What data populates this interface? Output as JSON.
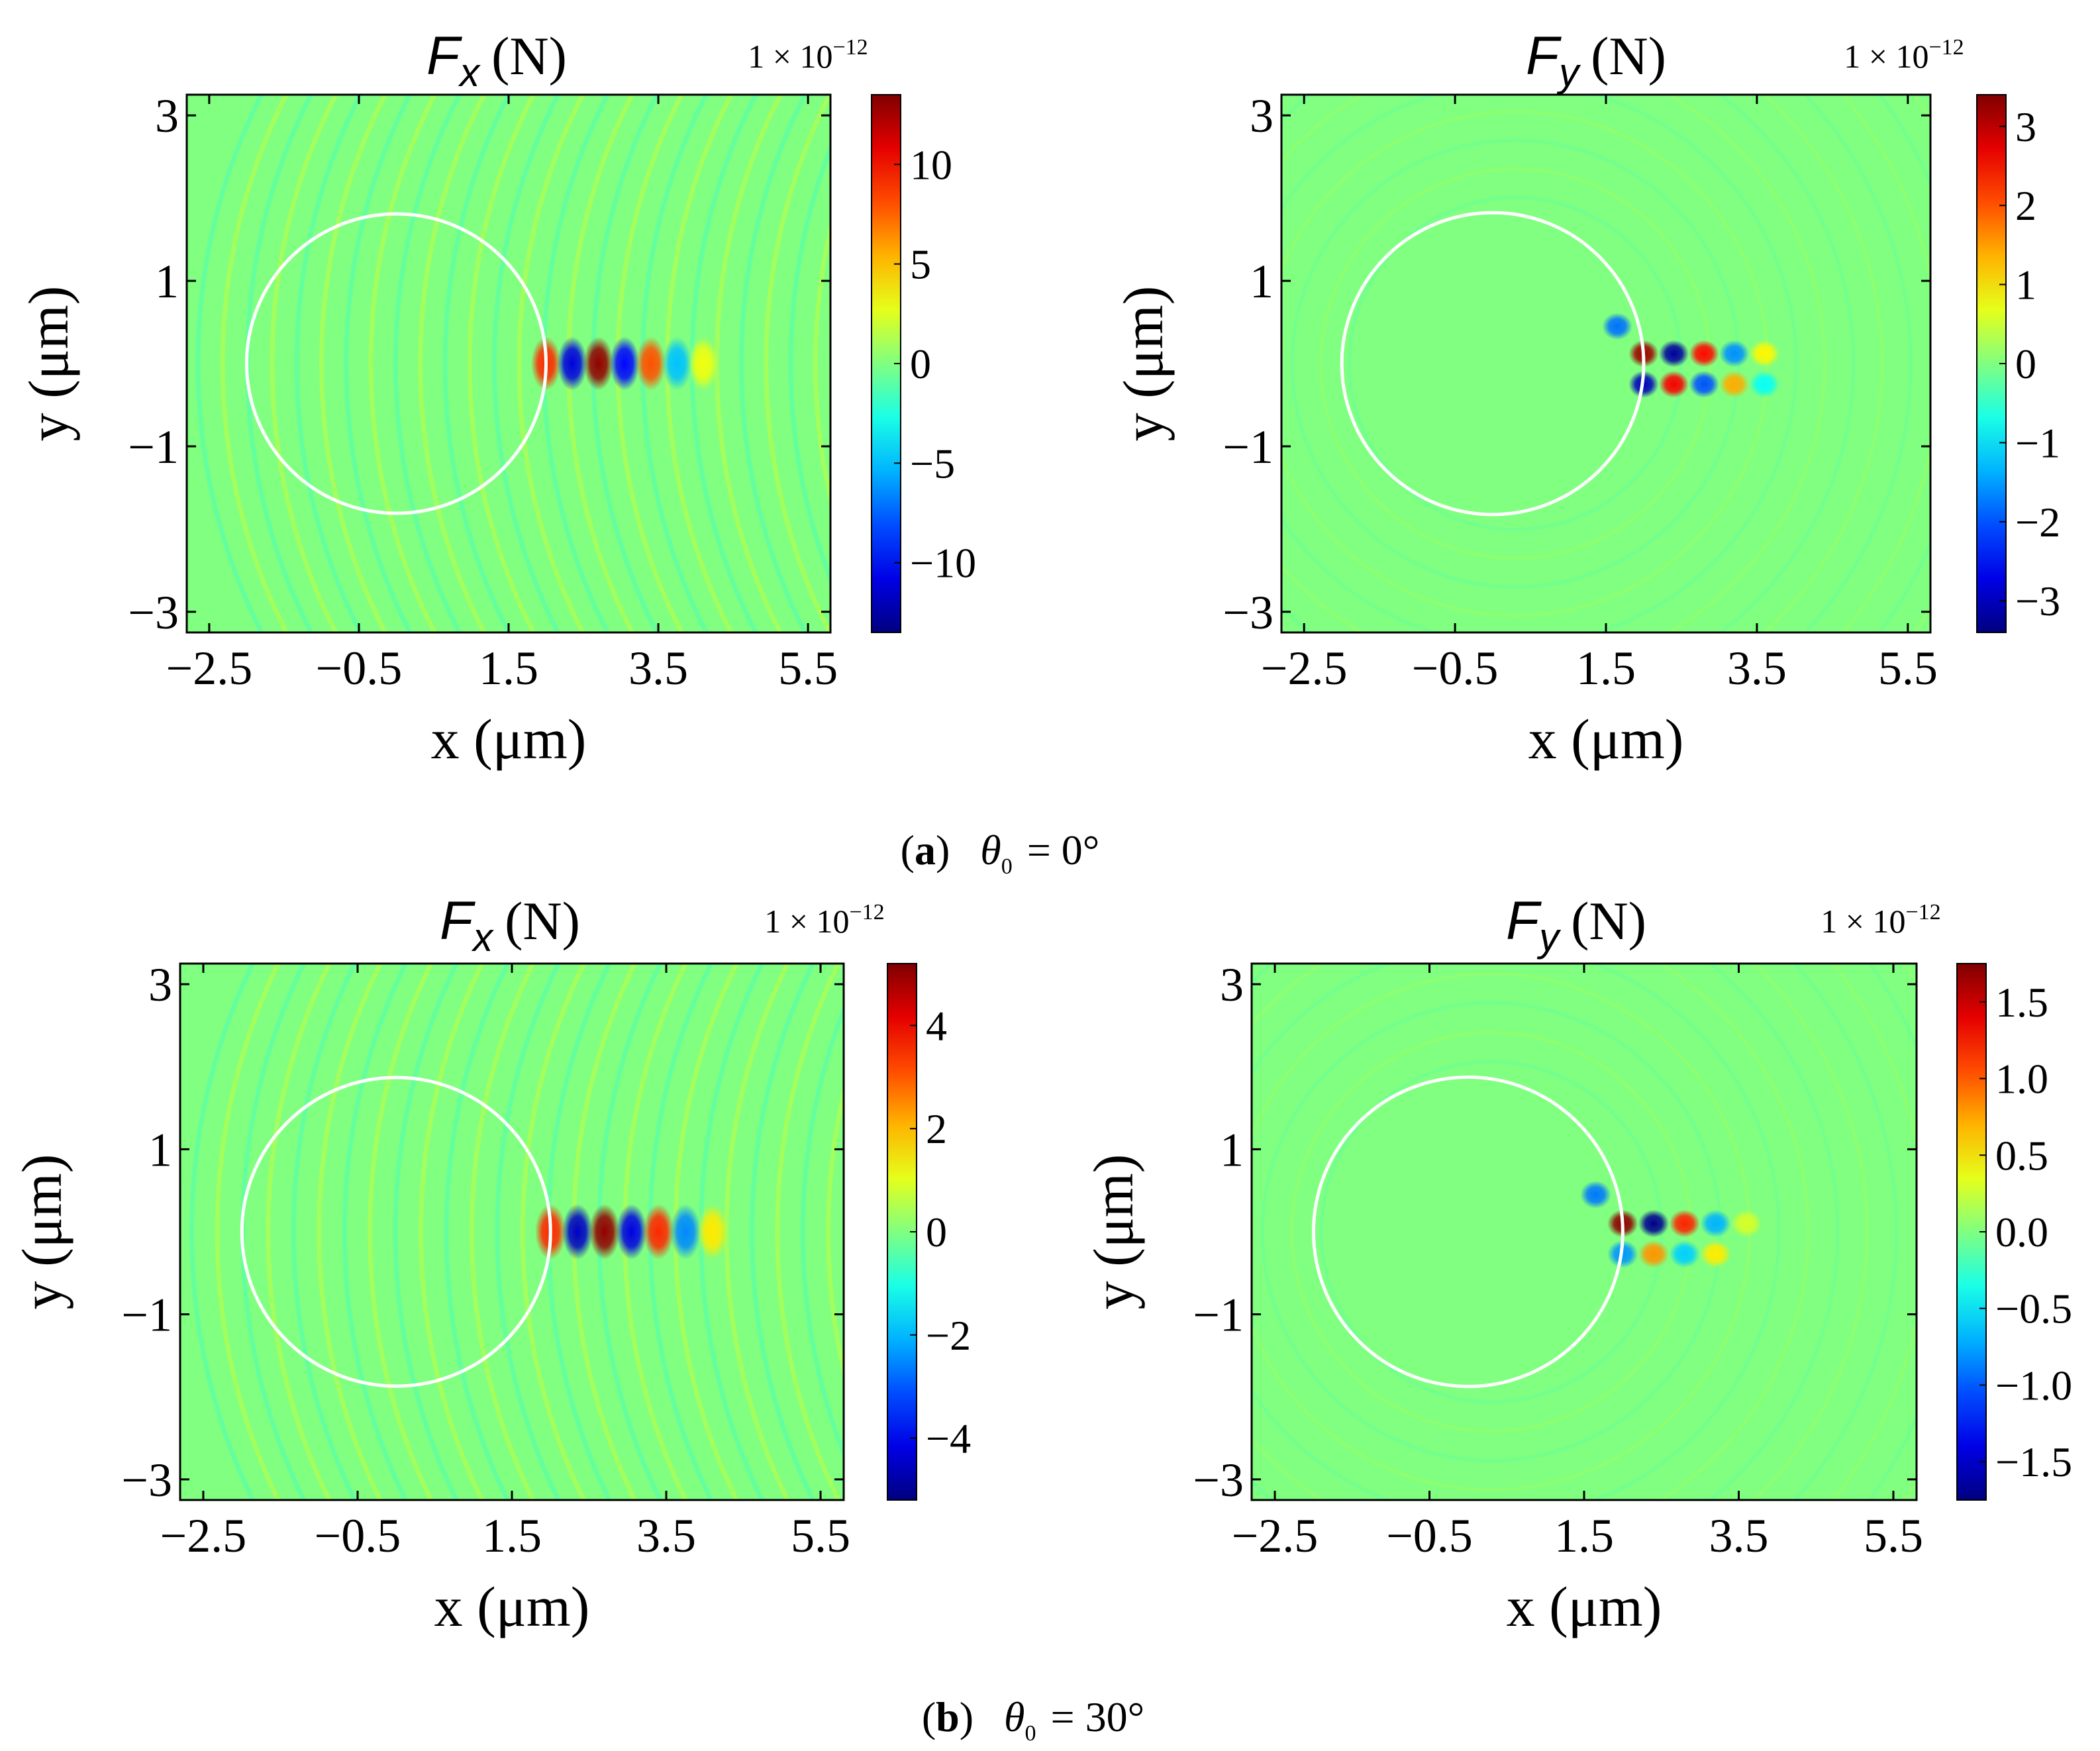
{
  "figure": {
    "captions": [
      {
        "letter": "a",
        "angle_text": "θ",
        "angle_sub": "0",
        "angle_value": " = 0°"
      },
      {
        "letter": "b",
        "angle_text": "θ",
        "angle_sub": "0",
        "angle_value": " = 30°"
      }
    ]
  },
  "chart_data": [
    {
      "type": "heatmap",
      "panel": "a-left",
      "title_var": "F",
      "title_sub": "x",
      "title_unit": "(N)",
      "scale_text": "1 × 10",
      "scale_exp": "−12",
      "xlabel": "x (μm)",
      "ylabel": "y (μm)",
      "xlim": [
        -2.8,
        5.8
      ],
      "ylim": [
        -3.25,
        3.25
      ],
      "xticks": [
        -2.5,
        -0.5,
        1.5,
        3.5,
        5.5
      ],
      "xtick_labels": [
        "−2.5",
        "−0.5",
        "1.5",
        "3.5",
        "5.5"
      ],
      "yticks": [
        -3,
        -1,
        1,
        3
      ],
      "ytick_labels": [
        "−3",
        "−1",
        "1",
        "3"
      ],
      "colorbar": {
        "min": -13.5,
        "max": 13.5,
        "ticks": [
          -10,
          -5,
          0,
          5,
          10
        ],
        "tick_labels": [
          "−10",
          "−5",
          "0",
          "5",
          "10"
        ]
      },
      "circle": {
        "center": [
          0,
          0
        ],
        "radius": 2
      },
      "pattern": "x",
      "spots": [
        {
          "x": 2.0,
          "y": 0,
          "value": 9
        },
        {
          "x": 2.35,
          "y": 0,
          "value": -11
        },
        {
          "x": 2.7,
          "y": 0,
          "value": 13
        },
        {
          "x": 3.05,
          "y": 0,
          "value": -10
        },
        {
          "x": 3.4,
          "y": 0,
          "value": 8
        },
        {
          "x": 3.75,
          "y": 0,
          "value": -5
        },
        {
          "x": 4.1,
          "y": 0,
          "value": 3
        }
      ]
    },
    {
      "type": "heatmap",
      "panel": "a-right",
      "title_var": "F",
      "title_sub": "y",
      "title_unit": "(N)",
      "scale_text": "1 × 10",
      "scale_exp": "−12",
      "xlabel": "x (μm)",
      "ylabel": "y (μm)",
      "xlim": [
        -2.8,
        5.8
      ],
      "ylim": [
        -3.25,
        3.25
      ],
      "xticks": [
        -2.5,
        -0.5,
        1.5,
        3.5,
        5.5
      ],
      "xtick_labels": [
        "−2.5",
        "−0.5",
        "1.5",
        "3.5",
        "5.5"
      ],
      "yticks": [
        -3,
        -1,
        1,
        3
      ],
      "ytick_labels": [
        "−3",
        "−1",
        "1",
        "3"
      ],
      "colorbar": {
        "min": -3.4,
        "max": 3.4,
        "ticks": [
          -3,
          -2,
          -1,
          0,
          1,
          2,
          3
        ],
        "tick_labels": [
          "−3",
          "−2",
          "−1",
          "0",
          "1",
          "2",
          "3"
        ]
      },
      "circle": {
        "center": [
          0,
          0
        ],
        "radius": 2
      },
      "pattern": "y",
      "spots": [
        {
          "x": 1.65,
          "y": 0.45,
          "value": -1.8
        },
        {
          "x": 2.0,
          "y": 0.12,
          "value": 3.2
        },
        {
          "x": 2.4,
          "y": 0.12,
          "value": -3.2
        },
        {
          "x": 2.8,
          "y": 0.12,
          "value": 2.5
        },
        {
          "x": 3.2,
          "y": 0.12,
          "value": -1.6
        },
        {
          "x": 3.6,
          "y": 0.12,
          "value": 0.9
        },
        {
          "x": 2.0,
          "y": -0.25,
          "value": -3.0
        },
        {
          "x": 2.4,
          "y": -0.25,
          "value": 2.6
        },
        {
          "x": 2.8,
          "y": -0.25,
          "value": -2.0
        },
        {
          "x": 3.2,
          "y": -0.25,
          "value": 1.4
        },
        {
          "x": 3.6,
          "y": -0.25,
          "value": -0.8
        }
      ]
    },
    {
      "type": "heatmap",
      "panel": "b-left",
      "title_var": "F",
      "title_sub": "x",
      "title_unit": "(N)",
      "scale_text": "1 × 10",
      "scale_exp": "−12",
      "xlabel": "x (μm)",
      "ylabel": "y (μm)",
      "xlim": [
        -2.8,
        5.8
      ],
      "ylim": [
        -3.25,
        3.25
      ],
      "xticks": [
        -2.5,
        -0.5,
        1.5,
        3.5,
        5.5
      ],
      "xtick_labels": [
        "−2.5",
        "−0.5",
        "1.5",
        "3.5",
        "5.5"
      ],
      "yticks": [
        -3,
        -1,
        1,
        3
      ],
      "ytick_labels": [
        "−3",
        "−1",
        "1",
        "3"
      ],
      "colorbar": {
        "min": -5.2,
        "max": 5.2,
        "ticks": [
          -4,
          -2,
          0,
          2,
          4
        ],
        "tick_labels": [
          "−4",
          "−2",
          "0",
          "2",
          "4"
        ]
      },
      "circle": {
        "center": [
          0,
          0
        ],
        "radius": 2
      },
      "pattern": "x",
      "spots": [
        {
          "x": 2.0,
          "y": 0,
          "value": 3.5
        },
        {
          "x": 2.35,
          "y": 0,
          "value": -4.5
        },
        {
          "x": 2.7,
          "y": 0,
          "value": 5.0
        },
        {
          "x": 3.05,
          "y": 0,
          "value": -4.2
        },
        {
          "x": 3.4,
          "y": 0,
          "value": 3.5
        },
        {
          "x": 3.75,
          "y": 0,
          "value": -2.5
        },
        {
          "x": 4.1,
          "y": 0,
          "value": 1.5
        }
      ]
    },
    {
      "type": "heatmap",
      "panel": "b-right",
      "title_var": "F",
      "title_sub": "y",
      "title_unit": "(N)",
      "scale_text": "1 × 10",
      "scale_exp": "−12",
      "xlabel": "x (μm)",
      "ylabel": "y (μm)",
      "xlim": [
        -2.8,
        5.8
      ],
      "ylim": [
        -3.25,
        3.25
      ],
      "xticks": [
        -2.5,
        -0.5,
        1.5,
        3.5,
        5.5
      ],
      "xtick_labels": [
        "−2.5",
        "−0.5",
        "1.5",
        "3.5",
        "5.5"
      ],
      "yticks": [
        -3,
        -1,
        1,
        3
      ],
      "ytick_labels": [
        "−3",
        "−1",
        "1",
        "3"
      ],
      "colorbar": {
        "min": -1.75,
        "max": 1.75,
        "ticks": [
          -1.5,
          -1.0,
          -0.5,
          0.0,
          0.5,
          1.0,
          1.5
        ],
        "tick_labels": [
          "−1.5",
          "−1.0",
          "−0.5",
          "0.0",
          "0.5",
          "1.0",
          "1.5"
        ]
      },
      "circle": {
        "center": [
          0,
          0
        ],
        "radius": 2
      },
      "pattern": "y",
      "spots": [
        {
          "x": 1.65,
          "y": 0.45,
          "value": -0.9
        },
        {
          "x": 2.0,
          "y": 0.1,
          "value": 1.7
        },
        {
          "x": 2.4,
          "y": 0.1,
          "value": -1.7
        },
        {
          "x": 2.8,
          "y": 0.1,
          "value": 1.2
        },
        {
          "x": 3.2,
          "y": 0.1,
          "value": -0.7
        },
        {
          "x": 3.6,
          "y": 0.1,
          "value": 0.3
        },
        {
          "x": 2.0,
          "y": -0.27,
          "value": -0.8
        },
        {
          "x": 2.4,
          "y": -0.27,
          "value": 0.8
        },
        {
          "x": 2.8,
          "y": -0.27,
          "value": -0.6
        },
        {
          "x": 3.2,
          "y": -0.27,
          "value": 0.5
        }
      ]
    }
  ]
}
